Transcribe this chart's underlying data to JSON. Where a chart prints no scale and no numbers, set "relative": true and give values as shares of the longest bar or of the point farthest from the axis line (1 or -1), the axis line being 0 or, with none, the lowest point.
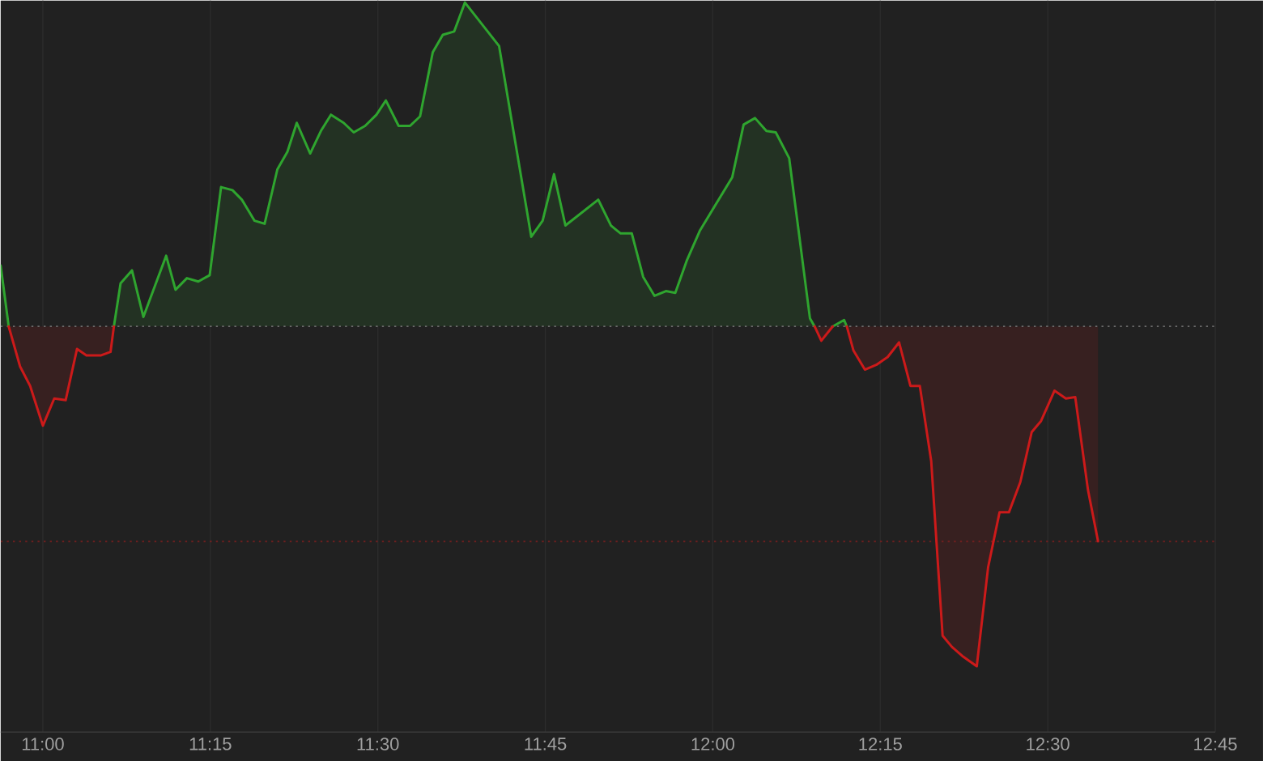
{
  "chart_data": {
    "type": "area",
    "relative": true,
    "grid": "x",
    "xlim": [
      10.937,
      12.75
    ],
    "xticks": [
      {
        "value": 11,
        "label": "11:00"
      },
      {
        "value": 11.25,
        "label": "11:15"
      },
      {
        "value": 11.5,
        "label": "11:30"
      },
      {
        "value": 11.75,
        "label": "11:45"
      },
      {
        "value": 12,
        "label": "12:00"
      },
      {
        "value": 12.25,
        "label": "12:15"
      },
      {
        "value": 12.5,
        "label": "12:30"
      },
      {
        "value": 12.75,
        "label": "12:45"
      }
    ],
    "x": [
      10.937,
      10.949,
      10.966,
      10.981,
      11.0,
      11.017,
      11.034,
      11.051,
      11.065,
      11.087,
      11.101,
      11.106,
      11.116,
      11.133,
      11.15,
      11.184,
      11.198,
      11.215,
      11.232,
      11.249,
      11.266,
      11.283,
      11.297,
      11.316,
      11.331,
      11.35,
      11.365,
      11.379,
      11.399,
      11.415,
      11.43,
      11.449,
      11.464,
      11.481,
      11.498,
      11.512,
      11.531,
      11.548,
      11.563,
      11.582,
      11.597,
      11.614,
      11.63,
      11.681,
      11.729,
      11.746,
      11.763,
      11.78,
      11.829,
      11.848,
      11.862,
      11.879,
      11.896,
      11.913,
      11.93,
      11.944,
      11.961,
      11.981,
      12.029,
      12.046,
      12.063,
      12.08,
      12.094,
      12.114,
      12.145,
      12.152,
      12.162,
      12.179,
      12.196,
      12.2,
      12.21,
      12.227,
      12.244,
      12.261,
      12.278,
      12.295,
      12.309,
      12.326,
      12.343,
      12.357,
      12.374,
      12.394,
      12.411,
      12.428,
      12.442,
      12.459,
      12.476,
      12.49,
      12.51,
      12.527,
      12.541,
      12.56,
      12.575
    ],
    "series": [
      {
        "color": "#2fa52f",
        "values": [
          0.179,
          0,
          null,
          null,
          null,
          null,
          null,
          null,
          null,
          null,
          null,
          0,
          0.127,
          0.165,
          0.028,
          0.208,
          0.108,
          0.142,
          0.132,
          0.151,
          0.41,
          0.401,
          0.373,
          0.311,
          0.302,
          0.462,
          0.514,
          0.599,
          0.509,
          0.575,
          0.623,
          0.599,
          0.571,
          0.59,
          0.623,
          0.665,
          0.59,
          0.59,
          0.618,
          0.807,
          0.858,
          0.868,
          0.953,
          0.825,
          0.264,
          0.311,
          0.448,
          0.297,
          0.373,
          0.297,
          0.274,
          0.274,
          0.146,
          0.09,
          0.104,
          0.099,
          0.193,
          0.283,
          0.439,
          0.594,
          0.613,
          0.575,
          0.571,
          0.495,
          0.024,
          0,
          null,
          0,
          0.019,
          0,
          null,
          null,
          null,
          null,
          null,
          null,
          null,
          null,
          null,
          null,
          null,
          null,
          null,
          null,
          null,
          null,
          null,
          null,
          null,
          null,
          null,
          null,
          null
        ]
      },
      {
        "color": "#cc1a1a",
        "values": [
          null,
          0,
          -0.118,
          -0.175,
          -0.292,
          -0.212,
          -0.217,
          -0.066,
          -0.085,
          -0.085,
          -0.075,
          0,
          null,
          null,
          null,
          null,
          null,
          null,
          null,
          null,
          null,
          null,
          null,
          null,
          null,
          null,
          null,
          null,
          null,
          null,
          null,
          null,
          null,
          null,
          null,
          null,
          null,
          null,
          null,
          null,
          null,
          null,
          null,
          null,
          null,
          null,
          null,
          null,
          null,
          null,
          null,
          null,
          null,
          null,
          null,
          null,
          null,
          null,
          null,
          null,
          null,
          null,
          null,
          null,
          null,
          0,
          -0.042,
          0,
          null,
          0,
          -0.071,
          -0.127,
          -0.113,
          -0.09,
          -0.047,
          -0.175,
          -0.175,
          -0.396,
          -0.91,
          -0.943,
          -0.972,
          -1.0,
          -0.708,
          -0.547,
          -0.547,
          -0.458,
          -0.311,
          -0.278,
          -0.189,
          -0.212,
          -0.208,
          -0.481,
          -0.632
        ]
      }
    ],
    "ref_lines": [
      {
        "axis": "y",
        "value": 0,
        "color": "#6b6b6b",
        "line_style": "dotted"
      },
      {
        "axis": "y",
        "value": -0.632,
        "color": "#7a1f1f",
        "line_style": "dotted"
      }
    ]
  }
}
